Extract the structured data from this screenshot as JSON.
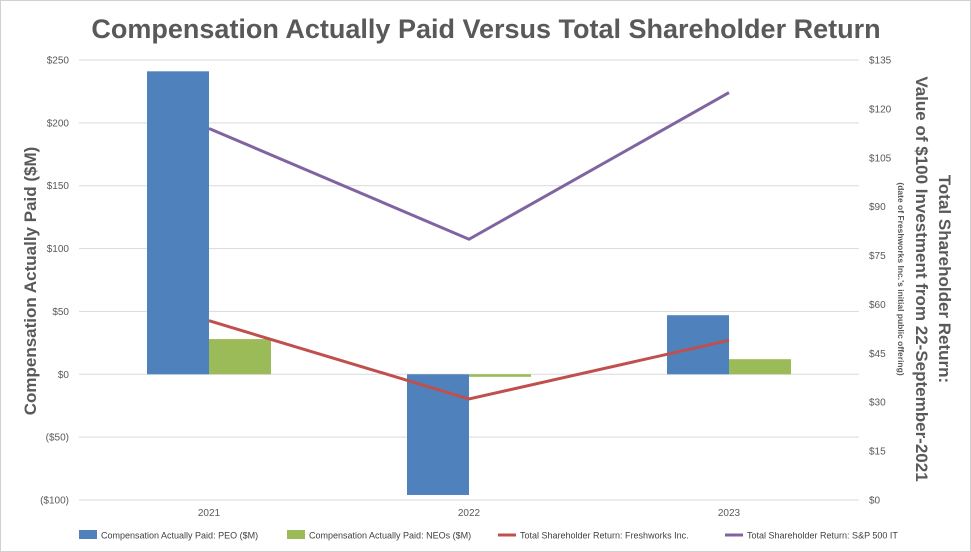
{
  "chart_data": {
    "type": "bar",
    "title": "Compensation Actually Paid Versus Total Shareholder Return",
    "categories": [
      "2021",
      "2022",
      "2023"
    ],
    "xlabel": "",
    "ylabel": "Compensation Actually Paid ($M)",
    "ylim": [
      -100,
      250
    ],
    "y_ticks": [
      250,
      200,
      150,
      100,
      50,
      0,
      -50,
      -100
    ],
    "y_tick_labels": [
      "$250",
      "$200",
      "$150",
      "$100",
      "$50",
      "$0",
      "($50)",
      "($100)"
    ],
    "y2label_line1": "Total Shareholder Return:",
    "y2label_line2": "Value of $100 Investment from 22-September-2021",
    "y2label_note": "(date of Freshworks Inc.'s initial public offering)",
    "y2lim": [
      0,
      135
    ],
    "y2_ticks": [
      135,
      120,
      105,
      90,
      75,
      60,
      45,
      30,
      15,
      0
    ],
    "y2_tick_labels": [
      "$135",
      "$120",
      "$105",
      "$90",
      "$75",
      "$60",
      "$45",
      "$30",
      "$15",
      "$0"
    ],
    "grid": true,
    "legend_position": "bottom",
    "series": [
      {
        "name": "Compensation Actually Paid: PEO ($M)",
        "kind": "bar",
        "axis": "left",
        "color": "#4F81BD",
        "values": [
          241,
          -96,
          47
        ]
      },
      {
        "name": "Compensation Actually Paid: NEOs ($M)",
        "kind": "bar",
        "axis": "left",
        "color": "#9BBB59",
        "values": [
          28,
          -2,
          12
        ]
      },
      {
        "name": "Total Shareholder Return: Freshworks Inc.",
        "kind": "line",
        "axis": "right",
        "color": "#C0504D",
        "values": [
          55,
          31,
          49
        ]
      },
      {
        "name": "Total Shareholder Return: S&P 500 IT",
        "kind": "line",
        "axis": "right",
        "color": "#8064A2",
        "values": [
          114,
          80,
          125
        ]
      }
    ]
  }
}
